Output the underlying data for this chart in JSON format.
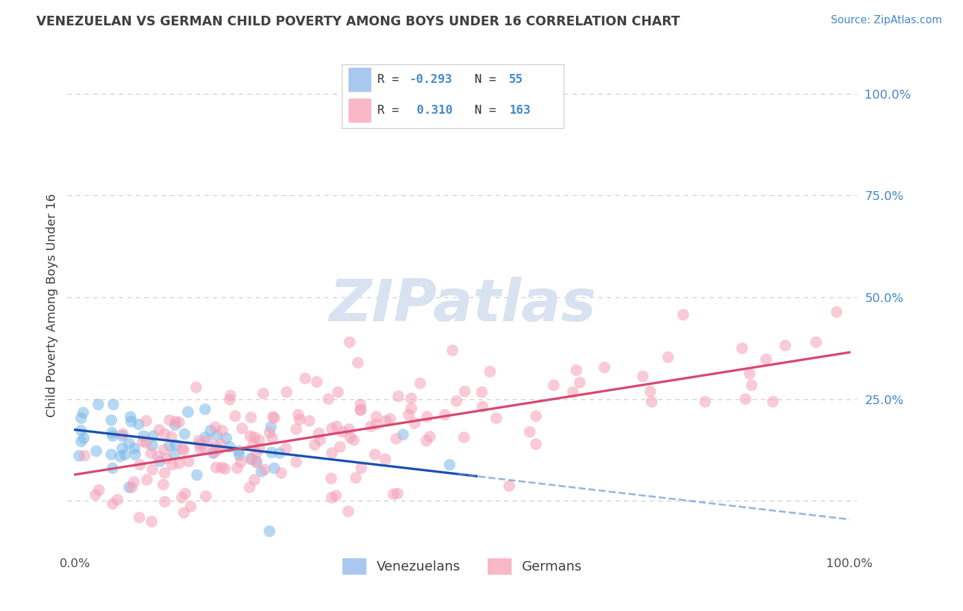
{
  "title": "VENEZUELAN VS GERMAN CHILD POVERTY AMONG BOYS UNDER 16 CORRELATION CHART",
  "source": "Source: ZipAtlas.com",
  "ylabel": "Child Poverty Among Boys Under 16",
  "legend_labels": [
    "Venezuelans",
    "Germans"
  ],
  "blue_scatter_color": "#7ab8e8",
  "pink_scatter_color": "#f5a0b8",
  "blue_legend_color": "#a8c8f0",
  "pink_legend_color": "#f8b8c8",
  "blue_line_color": "#1a50b0",
  "pink_line_color": "#d84870",
  "blue_dash_color": "#6090d0",
  "watermark_color": "#d8e2f0",
  "background_color": "#ffffff",
  "grid_color": "#cccccc",
  "title_color": "#404040",
  "source_color": "#4488cc",
  "yaxis_tick_color": "#4488cc",
  "R_blue": -0.293,
  "R_pink": 0.31,
  "N_blue": 55,
  "N_pink": 163,
  "xmin": 0.0,
  "xmax": 1.0,
  "ymin": -0.12,
  "ymax": 1.08,
  "blue_intercept": 0.175,
  "blue_slope": -0.22,
  "pink_intercept": 0.065,
  "pink_slope": 0.3
}
